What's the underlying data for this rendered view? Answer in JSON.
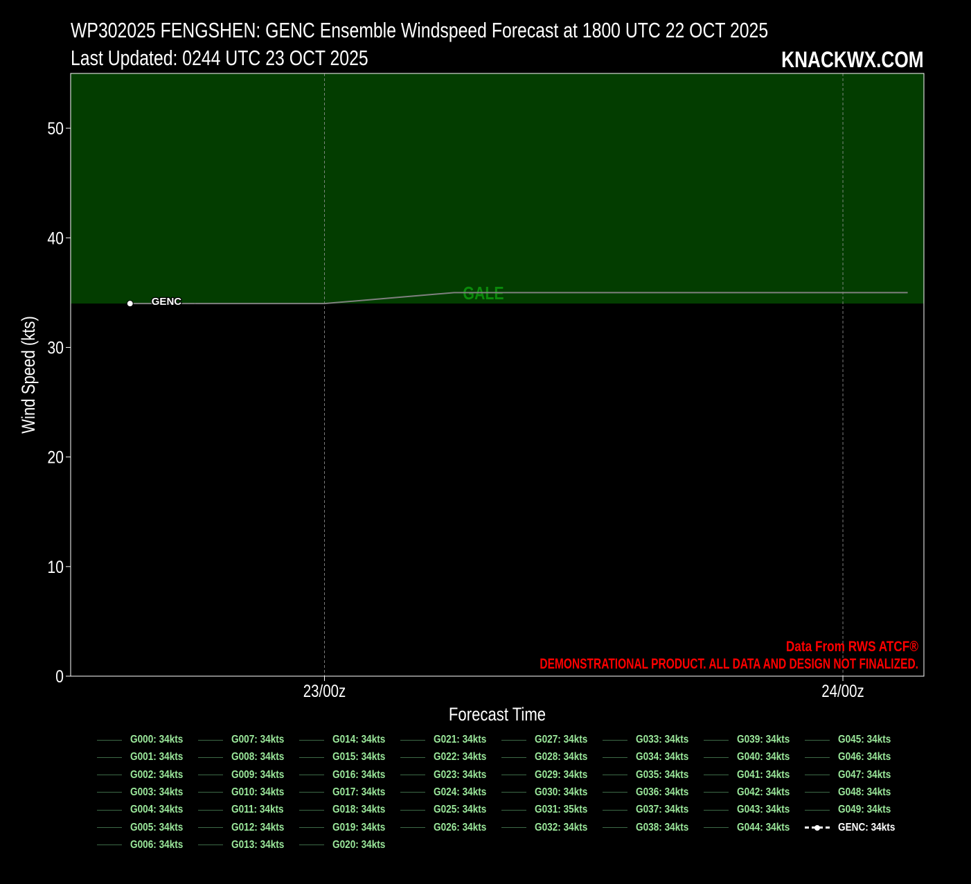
{
  "header": {
    "title_line1": "WP302025 FENGSHEN: GENC Ensemble Windspeed Forecast at 1800 UTC 22 OCT 2025",
    "title_line2": "Last Updated: 0244 UTC 23 OCT 2025",
    "brand": "KNACKWX.COM"
  },
  "chart_data": {
    "type": "line",
    "title": "WP302025 FENGSHEN: GENC Ensemble Windspeed Forecast at 1800 UTC 22 OCT 2025",
    "xlabel": "Forecast Time",
    "ylabel": "Wind Speed (kts)",
    "ylim": [
      0,
      55
    ],
    "yticks": [
      0,
      10,
      20,
      30,
      40,
      50
    ],
    "xlim_hours": [
      -5.75,
      33.75
    ],
    "xticks": [
      {
        "hour": 6,
        "label": "23/00z"
      },
      {
        "hour": 30,
        "label": "24/00z"
      }
    ],
    "grid": "vertical dashed at x ticks",
    "bands": [
      {
        "label": "GALE",
        "from": 34,
        "to": 55,
        "color": "#033d00",
        "label_color": "#0b8a0b"
      }
    ],
    "series": [
      {
        "name": "GENC",
        "x_hours": [
          0,
          6,
          12,
          18,
          24,
          30,
          36
        ],
        "values": [
          34,
          34,
          35,
          35,
          35,
          35,
          35
        ],
        "color": "#808080"
      }
    ],
    "marker": {
      "label": "GENC",
      "x_hours": -3,
      "value": 34
    }
  },
  "credits": {
    "line1": "Data From RWS ATCF®",
    "line2": "DEMONSTRATIONAL PRODUCT. ALL DATA AND DESIGN NOT FINALIZED.",
    "color": "#ff0000"
  },
  "legend": {
    "columns": [
      [
        "G000: 34kts",
        "G001: 34kts",
        "G002: 34kts",
        "G003: 34kts",
        "G004: 34kts",
        "G005: 34kts",
        "G006: 34kts"
      ],
      [
        "G007: 34kts",
        "G008: 34kts",
        "G009: 34kts",
        "G010: 34kts",
        "G011: 34kts",
        "G012: 34kts",
        "G013: 34kts"
      ],
      [
        "G014: 34kts",
        "G015: 34kts",
        "G016: 34kts",
        "G017: 34kts",
        "G018: 34kts",
        "G019: 34kts",
        "G020: 34kts"
      ],
      [
        "G021: 34kts",
        "G022: 34kts",
        "G023: 34kts",
        "G024: 34kts",
        "G025: 34kts",
        "G026: 34kts"
      ],
      [
        "G027: 34kts",
        "G028: 34kts",
        "G029: 34kts",
        "G030: 34kts",
        "G031: 35kts",
        "G032: 34kts"
      ],
      [
        "G033: 34kts",
        "G034: 34kts",
        "G035: 34kts",
        "G036: 34kts",
        "G037: 34kts",
        "G038: 34kts"
      ],
      [
        "G039: 34kts",
        "G040: 34kts",
        "G041: 34kts",
        "G042: 34kts",
        "G043: 34kts",
        "G044: 34kts"
      ],
      [
        "G045: 34kts",
        "G046: 34kts",
        "G047: 34kts",
        "G048: 34kts",
        "G049: 34kts",
        "GENC: 34kts"
      ]
    ],
    "member_color": "#3d6b47",
    "label_color": "#9be89b"
  }
}
